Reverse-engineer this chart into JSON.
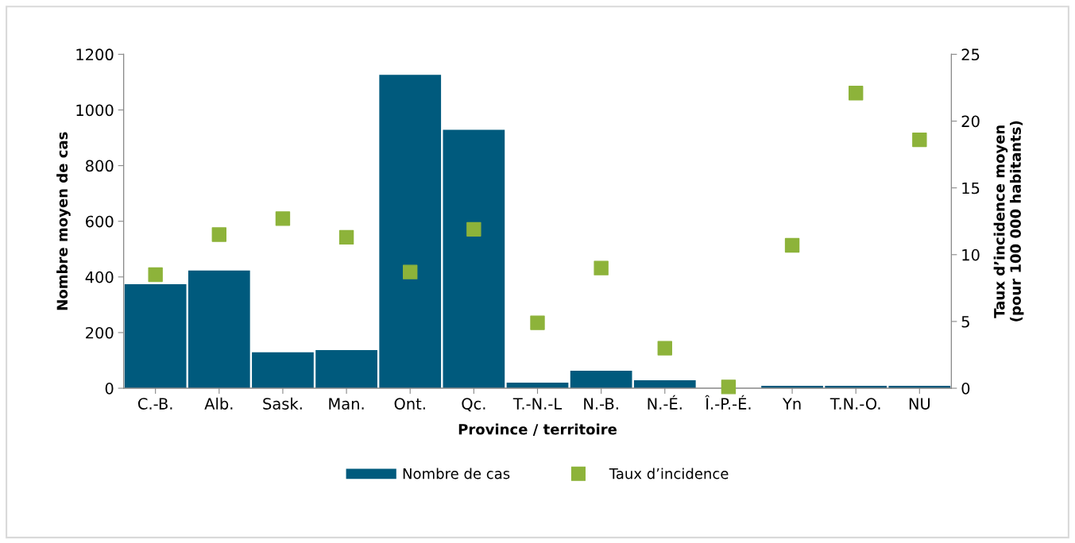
{
  "chart_data": {
    "type": "bar",
    "xlabel": "Province / territoire",
    "ylabel": "Nombre moyen de cas",
    "y2label": "Taux d’incidence moyen\n(pour 100 000 habitants)",
    "categories": [
      "C.-B.",
      "Alb.",
      "Sask.",
      "Man.",
      "Ont.",
      "Qc.",
      "T.-N.-L",
      "N.-B.",
      "N.-É.",
      "Î.-P.-É.",
      "Yn",
      "T.N.-O.",
      "NU"
    ],
    "series": [
      {
        "name": "Nombre de cas",
        "color": "#005a7d",
        "values": [
          374,
          423,
          129,
          137,
          1126,
          929,
          20,
          63,
          29,
          0,
          9,
          9,
          9
        ]
      },
      {
        "name": "Taux d’incidence",
        "type": "scatter",
        "axis": "y2",
        "color": "#8db33a",
        "values": [
          8.5,
          11.5,
          12.7,
          11.3,
          8.7,
          11.9,
          4.9,
          9.0,
          3.0,
          0.1,
          10.7,
          22.1,
          18.6
        ]
      }
    ],
    "ylim": [
      0,
      1200
    ],
    "yticks": [
      0,
      200,
      400,
      600,
      800,
      1000,
      1200
    ],
    "y2lim": [
      0,
      25
    ],
    "y2ticks": [
      0,
      5,
      10,
      15,
      20,
      25
    ],
    "marker": "square",
    "grid": false,
    "legend": "bottom"
  }
}
